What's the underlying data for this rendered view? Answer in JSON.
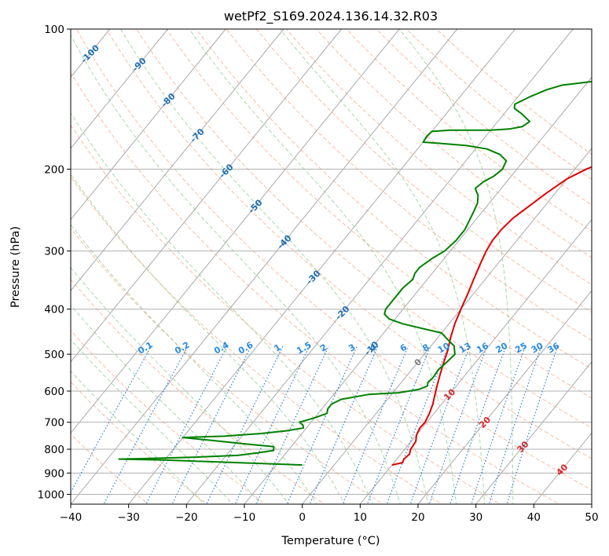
{
  "chart_data": {
    "type": "line",
    "title": "wetPf2_S169.2024.136.14.32.R03",
    "xlabel": "Temperature (°C)",
    "ylabel": "Pressure (hPa)",
    "xlim": [
      -40,
      50
    ],
    "ylim": [
      1050,
      100
    ],
    "y_scale": "log",
    "x_ticks": [
      "−40",
      "−30",
      "−20",
      "−10",
      "0",
      "10",
      "20",
      "30",
      "40",
      "50"
    ],
    "y_ticks": [
      "100",
      "200",
      "300",
      "400",
      "500",
      "600",
      "700",
      "800",
      "900",
      "1000"
    ],
    "grid": true,
    "series": [
      {
        "color": "#e00000",
        "x": [
          24,
          23.4,
          22.5,
          21,
          19.8,
          18.2,
          17,
          16.5,
          15.8,
          14,
          11,
          8,
          5,
          2,
          0,
          -1.5,
          -2.7,
          -3.8,
          -4.2,
          -4.2,
          -3.8,
          -3,
          -2,
          -1,
          0,
          1,
          2.2,
          3.5,
          4.5,
          5.5,
          6.5,
          7.5,
          8.5,
          9.2,
          9.7,
          9.6,
          10,
          10.8,
          11,
          11.5,
          11.2,
          11.5,
          10
        ],
        "y": [
          100,
          105,
          110,
          115,
          120,
          127,
          135,
          142,
          150,
          160,
          170,
          180,
          190,
          200,
          210,
          225,
          240,
          255,
          270,
          285,
          300,
          320,
          345,
          370,
          400,
          430,
          460,
          490,
          520,
          550,
          580,
          610,
          640,
          670,
          700,
          720,
          745,
          770,
          800,
          820,
          840,
          855,
          865
        ]
      },
      {
        "color": "#008000",
        "x": [
          -1,
          -2.5,
          -4,
          -4.5,
          -5,
          -5.5,
          -6,
          -8,
          -10,
          -12,
          -14,
          -16,
          -18,
          -19.5,
          -19,
          -17,
          -14.5,
          -15,
          -17,
          -20,
          -23,
          -27,
          -30,
          -30.2,
          -30,
          -27,
          -22,
          -18,
          -15,
          -13,
          -12.5,
          -13,
          -14,
          -14.5,
          -13,
          -12,
          -11.5,
          -11,
          -10.5,
          -10.5,
          -11,
          -12,
          -13,
          -13,
          -12.5,
          -13,
          -13,
          -13,
          -12.5,
          -11,
          -8,
          -4,
          0,
          2,
          4,
          5.3,
          5,
          4.6,
          4.8,
          4.6,
          5,
          4,
          1,
          -4,
          -8,
          -9,
          -9,
          -8.5,
          -10,
          -12,
          -11,
          -10.5,
          -13,
          -17,
          -23,
          -30,
          -25,
          -18,
          -13,
          -12.5,
          -15,
          -18,
          -25,
          -34,
          -38,
          -30,
          -5.5
        ],
        "y": [
          100,
          105,
          110,
          115,
          120,
          125,
          128,
          129,
          130,
          131,
          132,
          135,
          140,
          145,
          148,
          152,
          158,
          162,
          164,
          165,
          165,
          165,
          166,
          170,
          175,
          176,
          178,
          181,
          186,
          192,
          200,
          207,
          213,
          220,
          228,
          237,
          247,
          258,
          270,
          285,
          300,
          310,
          325,
          335,
          345,
          360,
          380,
          400,
          410,
          420,
          430,
          440,
          450,
          465,
          480,
          500,
          520,
          540,
          560,
          575,
          585,
          595,
          605,
          610,
          625,
          640,
          655,
          670,
          685,
          700,
          710,
          720,
          730,
          740,
          750,
          755,
          765,
          780,
          790,
          805,
          815,
          825,
          832,
          838,
          840,
          844,
          865
        ]
      }
    ],
    "dry_adiabats_C": [
      -30,
      -20,
      -10,
      0,
      10,
      20,
      30,
      40,
      50,
      60,
      70,
      80,
      90,
      100,
      110,
      120,
      130,
      140,
      150,
      160,
      170
    ],
    "moist_adiabats_C": [
      -20,
      -15,
      -10,
      -5,
      0,
      5,
      10,
      15,
      20,
      25,
      30,
      35
    ],
    "mixing_ratio_lines": [
      "0.1",
      "0.2",
      "0.4",
      "0.6",
      "1",
      "1.5",
      "2",
      "3",
      "4",
      "6",
      "8",
      "10",
      "13",
      "16",
      "20",
      "25",
      "30",
      "36"
    ],
    "skew_isotherm_labels": [
      {
        "value": "-100",
        "color": "#1f6fb4"
      },
      {
        "value": "-90",
        "color": "#1f6fb4"
      },
      {
        "value": "-80",
        "color": "#1f6fb4"
      },
      {
        "value": "-70",
        "color": "#1f6fb4"
      },
      {
        "value": "-60",
        "color": "#1f6fb4"
      },
      {
        "value": "-50",
        "color": "#1f6fb4"
      },
      {
        "value": "-40",
        "color": "#1f6fb4"
      },
      {
        "value": "-30",
        "color": "#1f6fb4"
      },
      {
        "value": "-20",
        "color": "#1f6fb4"
      },
      {
        "value": "-10",
        "color": "#1f6fb4"
      },
      {
        "value": "0",
        "color": "#808080"
      },
      {
        "value": "10",
        "color": "#d62728"
      },
      {
        "value": "20",
        "color": "#d62728"
      },
      {
        "value": "30",
        "color": "#d62728"
      },
      {
        "value": "40",
        "color": "#d62728"
      }
    ],
    "colors": {
      "isotherm": "#aaaaaa",
      "isobar": "#b0b0b0",
      "dry_adiabat": "#f4a582",
      "moist_adiabat": "#8cc98c",
      "mixing_ratio": "#2a7fd4",
      "mixing_label": "#2a8ae0"
    }
  }
}
